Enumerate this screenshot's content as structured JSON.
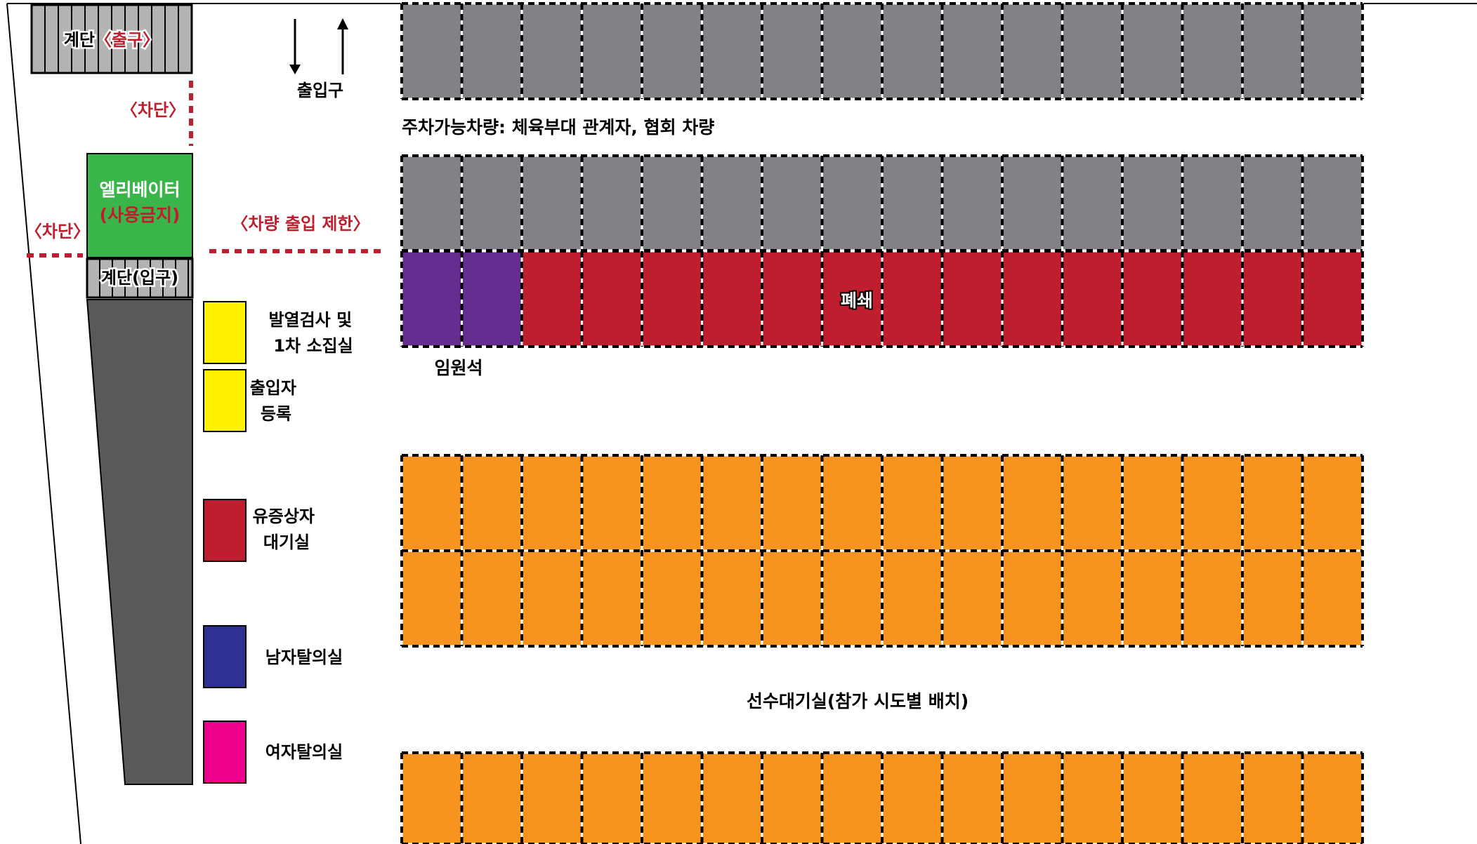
{
  "stairs_exit": {
    "label": "계단",
    "suffix": "〈출구〉"
  },
  "stairs_entry": {
    "label": "계단(입구)"
  },
  "entrance": {
    "label": "출입구"
  },
  "blocked": {
    "label": "〈차단〉"
  },
  "elevator": {
    "label": "엘리베이터",
    "note": "(사용금지)"
  },
  "vehicle_restriction": {
    "label": "〈차량 출입 제한〉"
  },
  "parking_notice": {
    "label": "주차가능차량: 체육부대 관계자, 협회 차량"
  },
  "closed": {
    "label": "폐쇄"
  },
  "executive_seats": {
    "label": "임원석"
  },
  "athlete_waiting": {
    "label": "선수대기실(참가 시도별 배치)"
  },
  "rooms": [
    {
      "line1": "발열검사 및",
      "line2": "1차 소집실",
      "color": "#fff200"
    },
    {
      "line1": "출입자",
      "line2": "등록",
      "color": "#fff200"
    },
    {
      "line1": "유증상자",
      "line2": "대기실",
      "color": "#be1e2d"
    },
    {
      "line1": "남자탈의실",
      "line2": "",
      "color": "#2e3192"
    },
    {
      "line1": "여자탈의실",
      "line2": "",
      "color": "#ec008c"
    }
  ],
  "colors": {
    "gray_block": "#808285",
    "closed_red": "#be1e2d",
    "executive_purple": "#662d91",
    "athlete_orange": "#f7941d",
    "elevator_green": "#39b54a",
    "corridor": "#58595b",
    "stairs": "#b3b3b3",
    "blocked_red": "#be1e2d"
  }
}
